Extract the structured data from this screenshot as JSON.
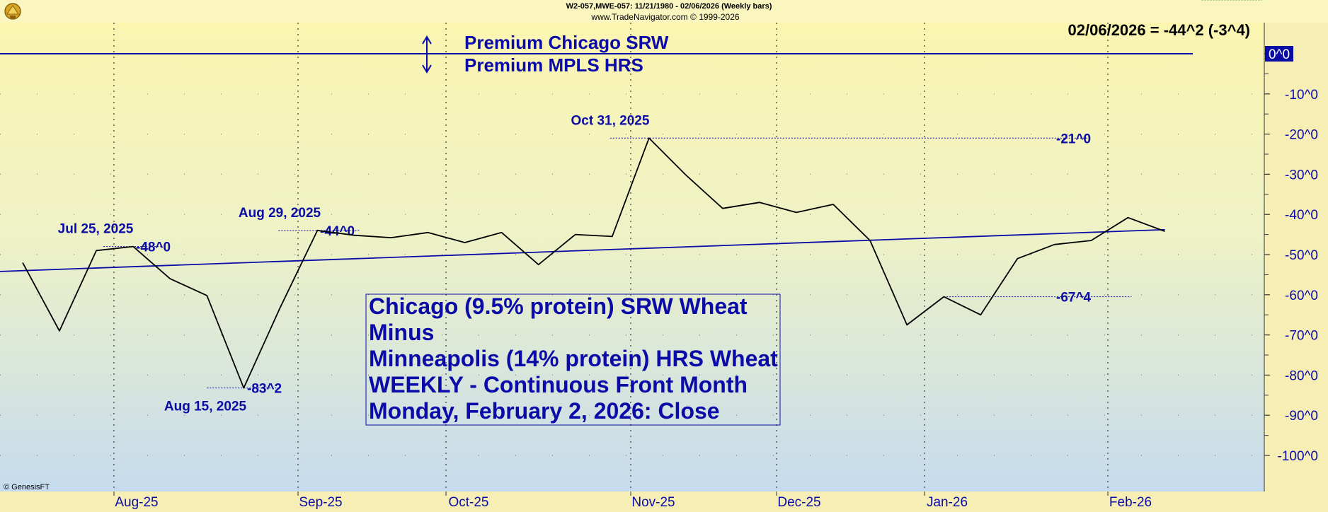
{
  "header": {
    "line1": "W2-057,MWE-057:  11/21/1980 - 02/06/2026  (Weekly bars)",
    "line2": "www.TradeNavigator.com © 1999-2026",
    "last_value": "02/06/2026 = -44^2 (-3^4)",
    "watermark": "© GenesisFT"
  },
  "legend": {
    "line1": "Premium Chicago SRW",
    "line2": "Premium MPLS HRS"
  },
  "note": {
    "line1": "Chicago (9.5% protein) SRW Wheat",
    "line2": "Minus",
    "line3": "Minneapolis (14% protein) HRS Wheat",
    "line4": "WEEKLY - Continuous Front Month",
    "line5": "Monday, February 2, 2026: Close"
  },
  "annotations": [
    {
      "date": "Jul 25, 2025",
      "value": "-48^0",
      "i": 3
    },
    {
      "date": "Aug 15, 2025",
      "value": "-83^2",
      "i": 6
    },
    {
      "date": "Aug 29, 2025",
      "value": "-44^0",
      "i": 8
    },
    {
      "date": "Oct 31, 2025",
      "value": "-21^0",
      "i": 17
    },
    {
      "date": "",
      "value": "-67^4",
      "i": 25
    },
    {
      "date": "",
      "value": "-44^2",
      "i": 32
    }
  ],
  "colors": {
    "bg_top": "#fbf5b0",
    "bg_bottom": "#c9dcec",
    "axis_text": "#0b0ba8",
    "price_line": "#000000",
    "trend_line": "#0b0ba8",
    "zero_line": "#0b0ba8",
    "last_value_label": "#22aa22",
    "zero_label_bg": "#0b0ba8",
    "zero_label_fg": "#ffffff"
  },
  "chart_data": {
    "type": "line",
    "title": "",
    "xlabel": "",
    "ylabel": "",
    "ylim": [
      -110,
      6
    ],
    "grid": true,
    "x_ticks": [
      "Aug-25",
      "Sep-25",
      "Oct-25",
      "Nov-25",
      "Dec-25",
      "Jan-26",
      "Feb-26"
    ],
    "y_ticks": [
      "0^0",
      "-10^0",
      "-20^0",
      "-30^0",
      "-40^0",
      "-50^0",
      "-60^0",
      "-70^0",
      "-80^0",
      "-90^0",
      "-100^0"
    ],
    "y_tick_values": [
      0,
      -10,
      -20,
      -30,
      -40,
      -50,
      -60,
      -70,
      -80,
      -90,
      -100
    ],
    "x": [
      "2025-07-04",
      "2025-07-11",
      "2025-07-18",
      "2025-07-25",
      "2025-08-01",
      "2025-08-08",
      "2025-08-15",
      "2025-08-22",
      "2025-08-29",
      "2025-09-05",
      "2025-09-12",
      "2025-09-19",
      "2025-09-26",
      "2025-10-03",
      "2025-10-10",
      "2025-10-17",
      "2025-10-24",
      "2025-10-31",
      "2025-11-07",
      "2025-11-14",
      "2025-11-21",
      "2025-11-28",
      "2025-12-05",
      "2025-12-12",
      "2025-12-19",
      "2025-12-26",
      "2026-01-02",
      "2026-01-09",
      "2026-01-16",
      "2026-01-23",
      "2026-01-30",
      "2026-02-06"
    ],
    "series": [
      {
        "name": "",
        "values": [
          -52,
          -69,
          -49,
          -48,
          -56,
          -60.2,
          -83.2,
          -63,
          -44,
          -45.2,
          -45.8,
          -44.5,
          -47,
          -44.5,
          -52.5,
          -45,
          -45.5,
          -21,
          -30.2,
          -38.5,
          -37,
          -39.5,
          -37.5,
          -46.5,
          -67.5,
          -60.5,
          -65,
          -51,
          -47.5,
          -46.5,
          -40.8,
          -44.2
        ]
      }
    ],
    "trend_line": {
      "start": -54.2,
      "end": -43.8
    },
    "zero_line": 0
  }
}
